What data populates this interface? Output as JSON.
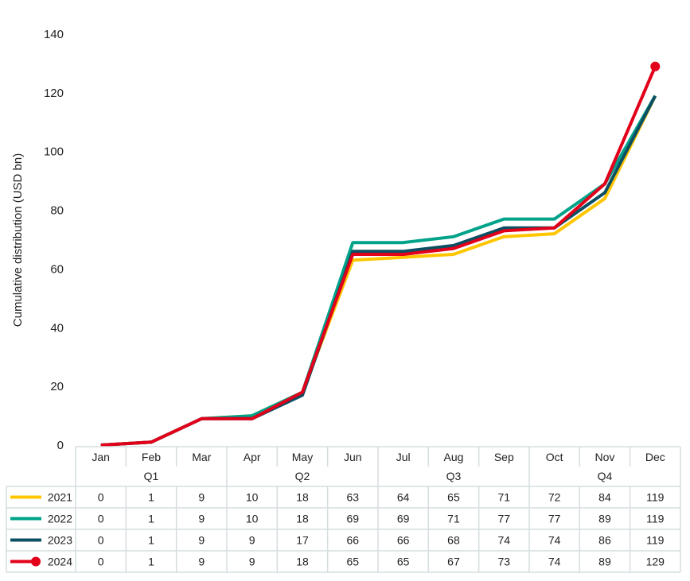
{
  "chart_data": {
    "type": "line",
    "title": "",
    "xlabel": "",
    "ylabel": "Cumulative distribution (USD bn)",
    "ylim": [
      0,
      140
    ],
    "yticks": [
      0,
      20,
      40,
      60,
      80,
      100,
      120,
      140
    ],
    "categories": [
      "Jan",
      "Feb",
      "Mar",
      "Apr",
      "May",
      "Jun",
      "Jul",
      "Aug",
      "Sep",
      "Oct",
      "Nov",
      "Dec"
    ],
    "quarters": [
      "Q1",
      "Q2",
      "Q3",
      "Q4"
    ],
    "series": [
      {
        "name": "2021",
        "color": "#FFC600",
        "values": [
          0,
          1,
          9,
          10,
          18,
          63,
          64,
          65,
          71,
          72,
          84,
          119
        ]
      },
      {
        "name": "2022",
        "color": "#00A28A",
        "values": [
          0,
          1,
          9,
          10,
          18,
          69,
          69,
          71,
          77,
          77,
          89,
          119
        ]
      },
      {
        "name": "2023",
        "color": "#0B4F63",
        "values": [
          0,
          1,
          9,
          9,
          17,
          66,
          66,
          68,
          74,
          74,
          86,
          119
        ]
      },
      {
        "name": "2024",
        "color": "#E2001A",
        "values": [
          0,
          1,
          9,
          9,
          18,
          65,
          65,
          67,
          73,
          74,
          89,
          129
        ],
        "end_marker": true
      }
    ],
    "grid": false,
    "legend": "table-left"
  }
}
